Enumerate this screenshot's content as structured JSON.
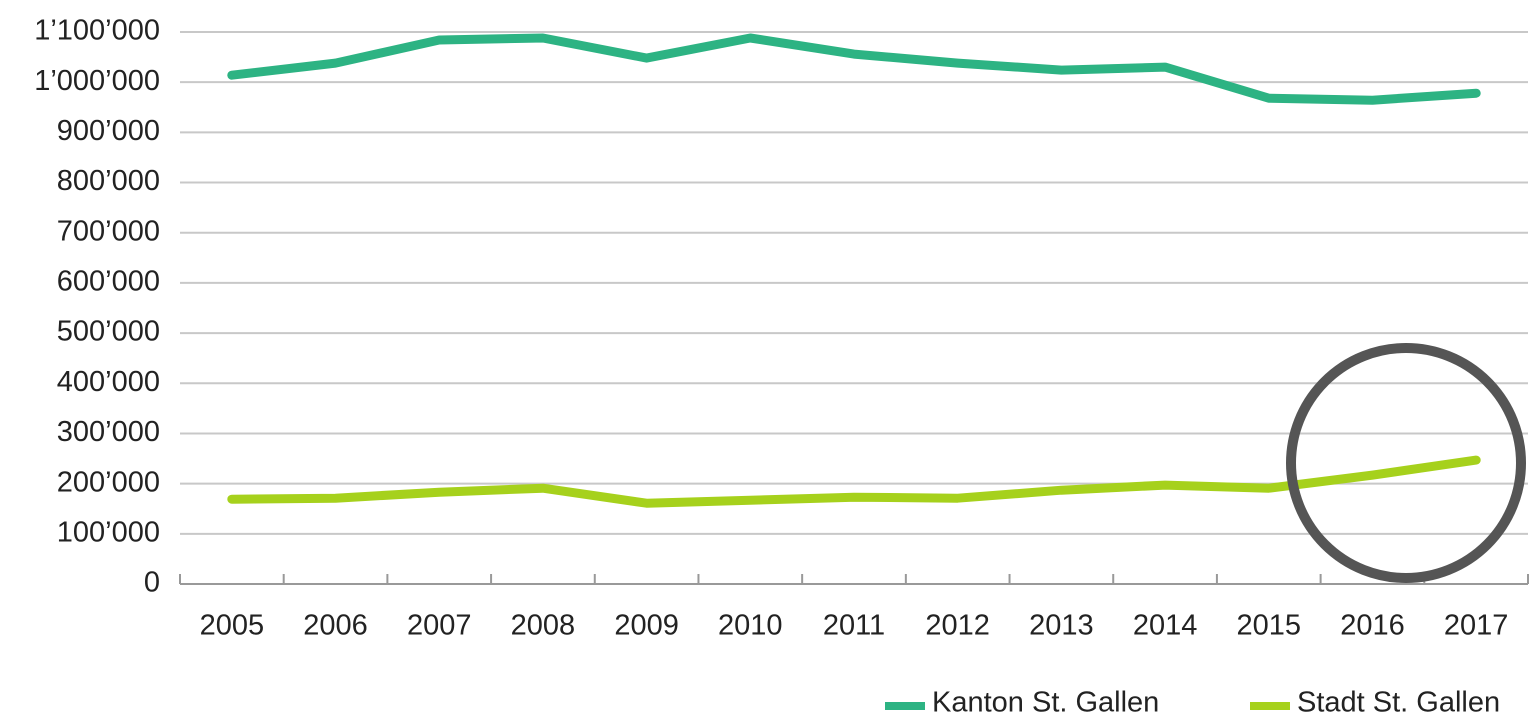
{
  "chart_data": {
    "type": "line",
    "categories": [
      "2005",
      "2006",
      "2007",
      "2008",
      "2009",
      "2010",
      "2011",
      "2012",
      "2013",
      "2014",
      "2015",
      "2016",
      "2017"
    ],
    "series": [
      {
        "name": "Kanton St. Gallen",
        "color": "#2db383",
        "values": [
          1014000,
          1038000,
          1084000,
          1088000,
          1048000,
          1088000,
          1056000,
          1038000,
          1024000,
          1030000,
          968000,
          964000,
          978000
        ]
      },
      {
        "name": "Stadt St. Gallen",
        "color": "#a6d11c",
        "values": [
          169000,
          171000,
          183000,
          191000,
          161000,
          167000,
          173000,
          171000,
          187000,
          197000,
          191000,
          217000,
          247000
        ]
      }
    ],
    "ylim": [
      0,
      1100000
    ],
    "yticks": [
      0,
      {
        "value": 100000,
        "label": "100’000"
      },
      {
        "value": 200000,
        "label": "200’000"
      },
      {
        "value": 300000,
        "label": "300’000"
      },
      {
        "value": 400000,
        "label": "400’000"
      },
      {
        "value": 500000,
        "label": "500’000"
      },
      {
        "value": 600000,
        "label": "600’000"
      },
      {
        "value": 700000,
        "label": "700’000"
      },
      {
        "value": 800000,
        "label": "800’000"
      },
      {
        "value": 900000,
        "label": "900’000"
      },
      {
        "value": 1000000,
        "label": "1’000’000"
      },
      {
        "value": 1100000,
        "label": "1’100’000"
      }
    ],
    "grid": true,
    "legend": "bottom-right"
  }
}
